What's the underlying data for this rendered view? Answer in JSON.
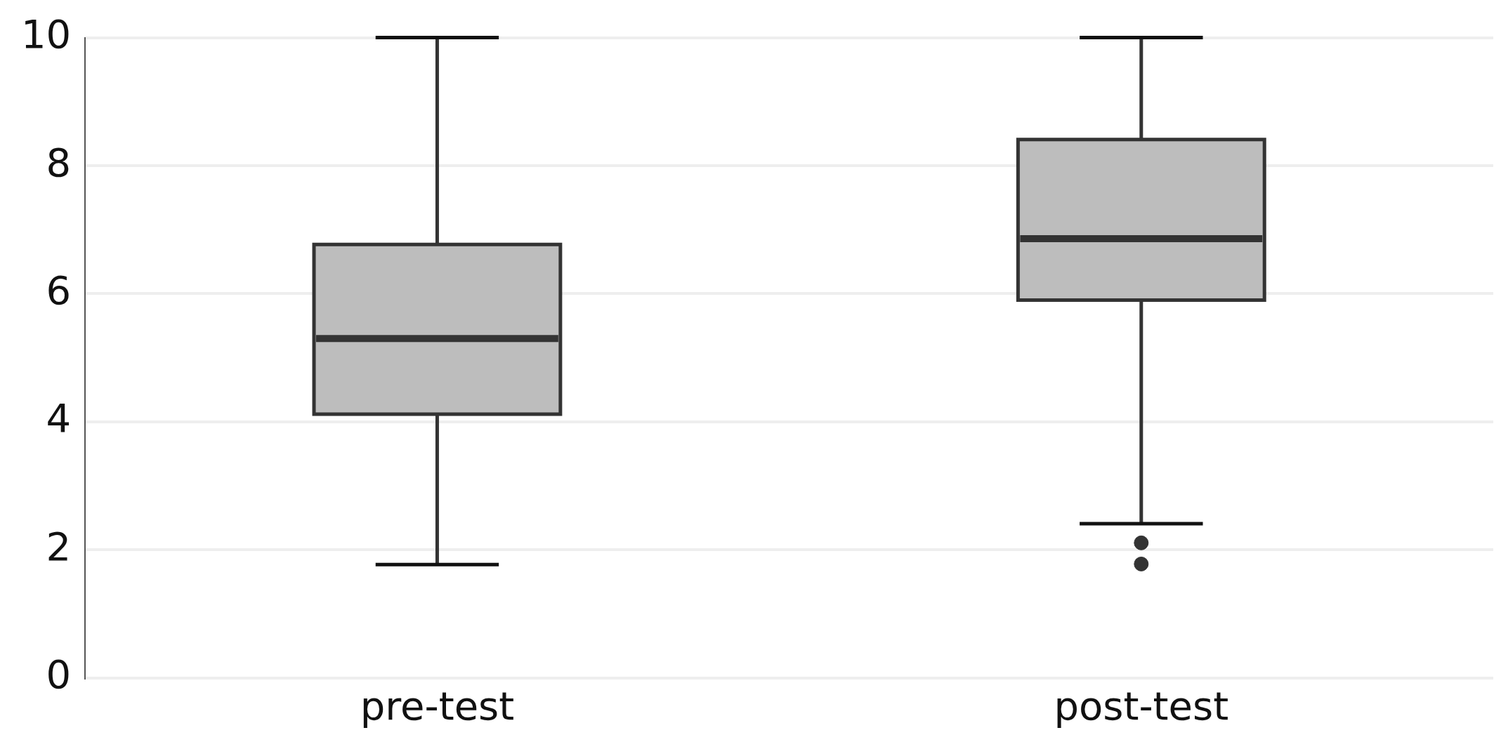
{
  "chart_data": {
    "type": "box",
    "categories": [
      "pre-test",
      "post-test"
    ],
    "color": "#bdbdbd",
    "boxes": [
      {
        "low": 1.77,
        "q1": 4.12,
        "median": 5.3,
        "q3": 6.77,
        "high": 10
      },
      {
        "low": 2.41,
        "q1": 5.9,
        "median": 6.86,
        "q3": 8.41,
        "high": 10,
        "outliers": [
          2.11,
          1.78
        ]
      }
    ],
    "ylim": [
      0,
      10
    ],
    "yticks": [
      0,
      2,
      4,
      6,
      8,
      10
    ],
    "grid": "y",
    "legend": false
  }
}
